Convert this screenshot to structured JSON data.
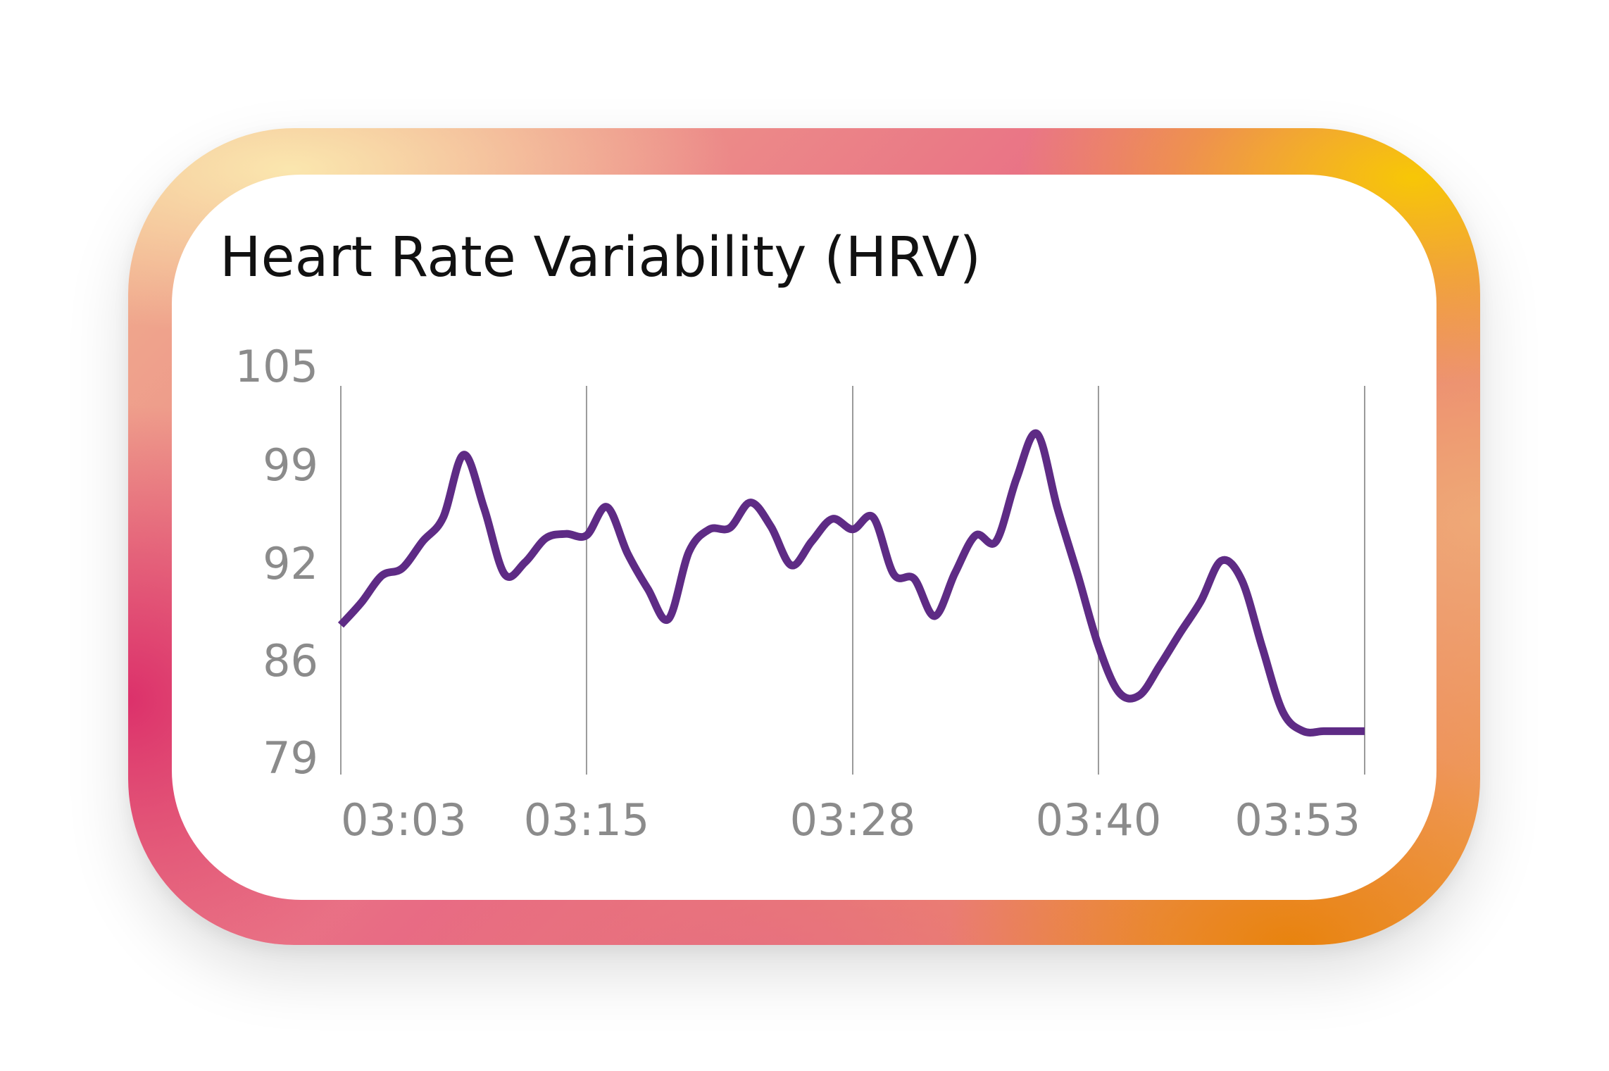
{
  "chart_data": {
    "type": "line",
    "title": "Heart Rate Variability (HRV)",
    "xlabel": "",
    "ylabel": "",
    "y_ticks": [
      "105",
      "99",
      "92",
      "86",
      "79"
    ],
    "y_tick_values": [
      105,
      99,
      92,
      86,
      79
    ],
    "ylim": [
      79,
      105
    ],
    "x_ticks": [
      "03:03",
      "03:15",
      "03:28",
      "03:40",
      "03:53"
    ],
    "xlim": [
      "03:03",
      "03:53"
    ],
    "grid": "vertical",
    "legend": "none",
    "line_color": "#5e2b85",
    "grid_color": "#9a9a9a",
    "series": [
      {
        "x": [
          "03:03",
          "03:04",
          "03:05",
          "03:06",
          "03:07",
          "03:08",
          "03:09",
          "03:10",
          "03:11",
          "03:12",
          "03:13",
          "03:14",
          "03:15",
          "03:16",
          "03:17",
          "03:18",
          "03:19",
          "03:20",
          "03:21",
          "03:22",
          "03:23",
          "03:24",
          "03:25",
          "03:26",
          "03:27",
          "03:28",
          "03:29",
          "03:30",
          "03:31",
          "03:32",
          "03:33",
          "03:34",
          "03:35",
          "03:36",
          "03:37",
          "03:38",
          "03:39",
          "03:40",
          "03:41",
          "03:42",
          "03:43",
          "03:44",
          "03:45",
          "03:46",
          "03:47",
          "03:48",
          "03:49",
          "03:50",
          "03:51",
          "03:52",
          "03:53"
        ],
        "values": [
          89.0,
          90.5,
          92.3,
          92.8,
          94.6,
          96.2,
          100.4,
          96.8,
          92.4,
          93.2,
          94.8,
          95.1,
          95.0,
          96.9,
          93.8,
          91.4,
          89.4,
          93.9,
          95.4,
          95.5,
          97.2,
          95.6,
          93.0,
          94.6,
          96.1,
          95.4,
          96.2,
          92.4,
          92.1,
          89.6,
          92.5,
          95.0,
          94.6,
          98.8,
          101.8,
          96.8,
          92.3,
          87.6,
          84.5,
          84.3,
          86.3,
          88.5,
          90.6,
          93.3,
          92.0,
          87.5,
          83.2,
          81.9,
          81.9,
          81.9,
          81.9
        ]
      }
    ]
  }
}
